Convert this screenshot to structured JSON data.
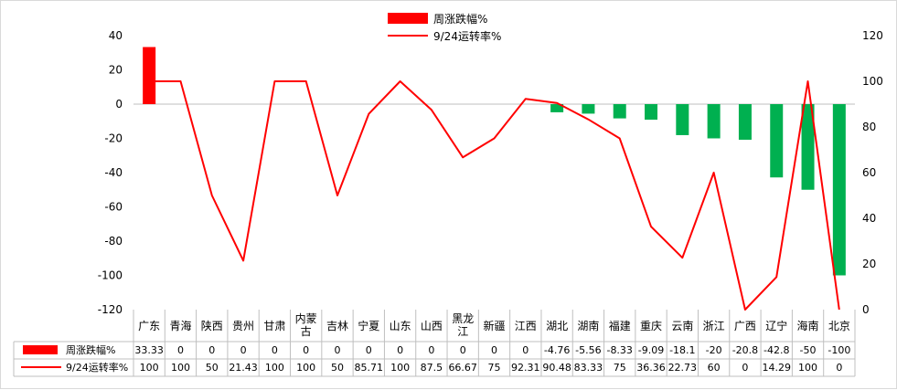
{
  "chart_data": {
    "type": "bar",
    "categories": [
      "广东",
      "青海",
      "陕西",
      "贵州",
      "甘肃",
      "内蒙古",
      "吉林",
      "宁夏",
      "山东",
      "山西",
      "黑龙江",
      "新疆",
      "江西",
      "湖北",
      "湖南",
      "福建",
      "重庆",
      "云南",
      "浙江",
      "广西",
      "辽宁",
      "海南",
      "北京"
    ],
    "category_lines": [
      [
        "广东"
      ],
      [
        "青海"
      ],
      [
        "陕西"
      ],
      [
        "贵州"
      ],
      [
        "甘肃"
      ],
      [
        "内蒙",
        "古"
      ],
      [
        "吉林"
      ],
      [
        "宁夏"
      ],
      [
        "山东"
      ],
      [
        "山西"
      ],
      [
        "黑龙",
        "江"
      ],
      [
        "新疆"
      ],
      [
        "江西"
      ],
      [
        "湖北"
      ],
      [
        "湖南"
      ],
      [
        "福建"
      ],
      [
        "重庆"
      ],
      [
        "云南"
      ],
      [
        "浙江"
      ],
      [
        "广西"
      ],
      [
        "辽宁"
      ],
      [
        "海南"
      ],
      [
        "北京"
      ]
    ],
    "series": [
      {
        "name": "周涨跌幅%",
        "type": "bar",
        "axis": "left",
        "values": [
          33.33,
          0,
          0,
          0,
          0,
          0,
          0,
          0,
          0,
          0,
          0,
          0,
          0,
          -4.76,
          -5.56,
          -8.33,
          -9.09,
          -18.1,
          -20,
          -20.8,
          -42.8,
          -50,
          -100
        ],
        "table_values": [
          "33.33",
          "0",
          "0",
          "0",
          "0",
          "0",
          "0",
          "0",
          "0",
          "0",
          "0",
          "0",
          "0",
          "-4.76",
          "-5.56",
          "-8.33",
          "-9.09",
          "-18.1",
          "-20",
          "-20.8",
          "-42.8",
          "-50",
          "-100"
        ],
        "color_positive": "#ff0000",
        "color_negative": "#00b050"
      },
      {
        "name": "9/24运转率%",
        "type": "line",
        "axis": "right",
        "values": [
          100,
          100,
          50,
          21.43,
          100,
          100,
          50,
          85.71,
          100,
          87.5,
          66.67,
          75,
          92.31,
          90.48,
          83.33,
          75,
          36.36,
          22.73,
          60,
          0,
          14.29,
          100,
          0
        ],
        "table_values": [
          "100",
          "100",
          "50",
          "21.43",
          "100",
          "100",
          "50",
          "85.71",
          "100",
          "87.5",
          "66.67",
          "75",
          "92.31",
          "90.48",
          "83.33",
          "75",
          "36.36",
          "22.73",
          "60",
          "0",
          "14.29",
          "100",
          "0"
        ],
        "color": "#ff0000"
      }
    ],
    "left_axis": {
      "min": -120,
      "max": 40,
      "step": 20,
      "ticks": [
        "40",
        "20",
        "0",
        "-20",
        "-40",
        "-60",
        "-80",
        "-100",
        "-120"
      ]
    },
    "right_axis": {
      "min": 0,
      "max": 120,
      "step": 20,
      "ticks": [
        "120",
        "100",
        "80",
        "60",
        "40",
        "20",
        "0"
      ]
    },
    "legend_position": "top",
    "data_table": true,
    "grid": false
  }
}
